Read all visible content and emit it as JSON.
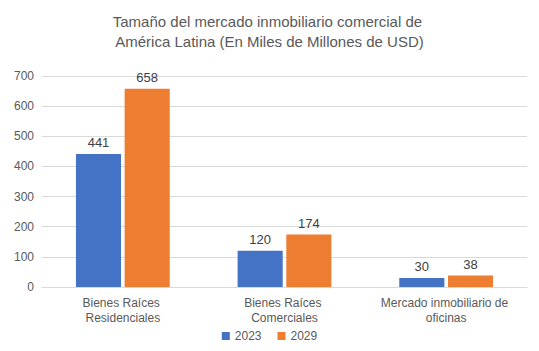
{
  "chart_data": {
    "type": "bar",
    "title": "Tamaño del mercado inmobiliario comercial de América Latina (En Miles de Millones de USD)",
    "categories": [
      "Bienes Raíces Residenciales",
      "Bienes Raíces Comerciales",
      "Mercado inmobiliario de oficinas"
    ],
    "series": [
      {
        "name": "2023",
        "color": "#4472c4",
        "values": [
          441,
          120,
          30
        ]
      },
      {
        "name": "2029",
        "color": "#ed7d31",
        "values": [
          658,
          174,
          38
        ]
      }
    ],
    "ylim": [
      0,
      700
    ],
    "yticks": [
      0,
      100,
      200,
      300,
      400,
      500,
      600,
      700
    ],
    "grid": true,
    "legend": "bottom",
    "data_labels": true
  }
}
